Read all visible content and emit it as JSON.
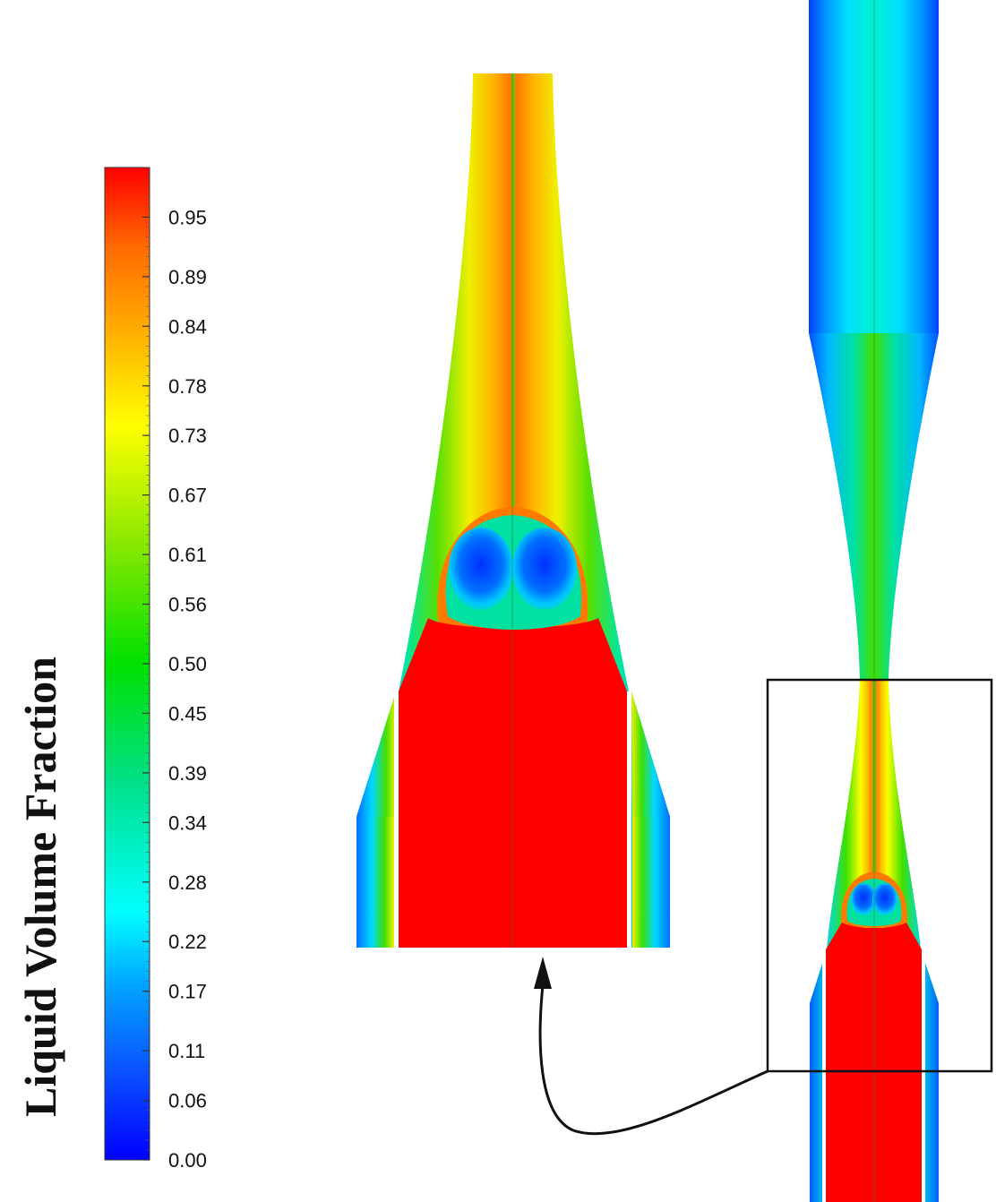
{
  "colorbar": {
    "title": "Liquid Volume Fraction",
    "ticks": [
      "0.95",
      "0.89",
      "0.84",
      "0.78",
      "0.73",
      "0.67",
      "0.61",
      "0.56",
      "0.50",
      "0.45",
      "0.39",
      "0.34",
      "0.28",
      "0.22",
      "0.17",
      "0.11",
      "0.06",
      "0.00"
    ],
    "range": [
      0,
      1
    ],
    "gradient_colors": [
      "#0000ff",
      "#0a5cff",
      "#00a8ff",
      "#00ffff",
      "#00e08a",
      "#00e000",
      "#88e800",
      "#ffff00",
      "#ffaa00",
      "#ff6a00",
      "#ff0000"
    ]
  },
  "views": {
    "zoomed": "zoomed-view",
    "full": "full-view"
  }
}
